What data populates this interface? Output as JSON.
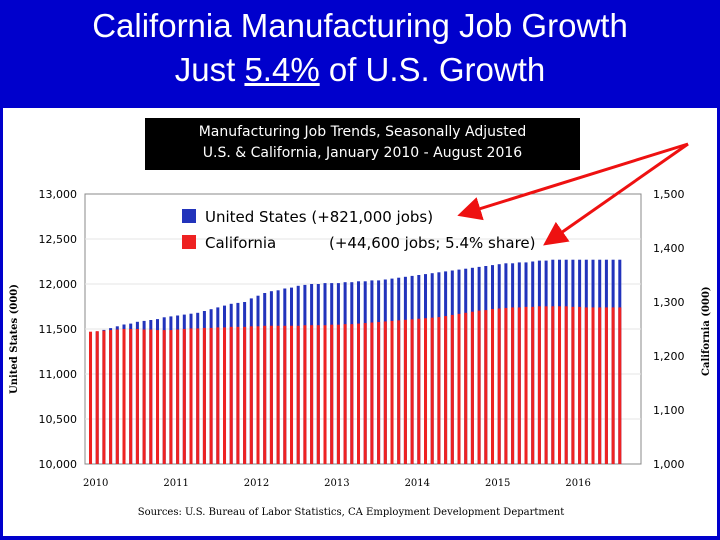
{
  "slide": {
    "title_line1": "California Manufacturing Job Growth",
    "title_line2_prefix": "Just ",
    "title_line2_pct": "5.4%",
    "title_line2_suffix": " of U.S. Growth"
  },
  "chart_data": {
    "type": "bar",
    "title_line1": "Manufacturing Job Trends, Seasonally Adjusted",
    "title_line2": "U.S. & California, January 2010 - August 2016",
    "ylabel_left": "United States (000)",
    "ylabel_right": "California (000)",
    "ylim_left": [
      10000,
      13000
    ],
    "ylim_right": [
      1000,
      1500
    ],
    "left_ticks": [
      "13,000",
      "12,500",
      "12,000",
      "11,500",
      "11,000",
      "10,500",
      "10,000"
    ],
    "right_ticks": [
      "1,500",
      "1,400",
      "1,300",
      "1,200",
      "1,100",
      "1,000"
    ],
    "x_ticks": [
      "2010",
      "2011",
      "2012",
      "2013",
      "2014",
      "2015",
      "2016"
    ],
    "legend": [
      {
        "label": "United States (+821,000 jobs)",
        "color": "#2233bb"
      },
      {
        "label": "California",
        "extra": "(+44,600 jobs; 5.4% share)",
        "color": "#ee2222"
      }
    ],
    "source": "Sources: U.S. Bureau of Labor Statistics, CA Employment Development Department",
    "series": [
      {
        "name": "United States",
        "axis": "left",
        "color": "#2233bb",
        "start": "2010-01",
        "end": "2016-08",
        "values": [
          11460,
          11470,
          11490,
          11510,
          11530,
          11550,
          11560,
          11580,
          11590,
          11600,
          11610,
          11630,
          11640,
          11650,
          11660,
          11670,
          11680,
          11700,
          11720,
          11740,
          11760,
          11780,
          11790,
          11800,
          11840,
          11870,
          11900,
          11920,
          11930,
          11950,
          11960,
          11980,
          11990,
          12000,
          12000,
          12010,
          12010,
          12010,
          12020,
          12020,
          12030,
          12030,
          12040,
          12040,
          12050,
          12060,
          12070,
          12080,
          12090,
          12100,
          12110,
          12120,
          12130,
          12140,
          12150,
          12160,
          12170,
          12180,
          12190,
          12200,
          12210,
          12220,
          12230,
          12230,
          12240,
          12240,
          12250,
          12260,
          12260,
          12270,
          12270,
          12270,
          12270,
          12270,
          12270,
          12270,
          12270,
          12270,
          12270,
          12270
        ]
      },
      {
        "name": "California",
        "axis": "right",
        "color": "#ee2222",
        "start": "2010-01",
        "end": "2016-08",
        "values": [
          1245,
          1246,
          1247,
          1248,
          1249,
          1250,
          1250,
          1250,
          1249,
          1249,
          1248,
          1248,
          1248,
          1249,
          1250,
          1251,
          1251,
          1252,
          1252,
          1253,
          1253,
          1254,
          1254,
          1254,
          1255,
          1255,
          1256,
          1256,
          1256,
          1256,
          1256,
          1256,
          1257,
          1257,
          1257,
          1257,
          1258,
          1258,
          1259,
          1259,
          1260,
          1261,
          1262,
          1263,
          1264,
          1265,
          1266,
          1267,
          1268,
          1269,
          1270,
          1271,
          1272,
          1274,
          1276,
          1278,
          1280,
          1282,
          1284,
          1285,
          1287,
          1288,
          1289,
          1290,
          1290,
          1291,
          1291,
          1292,
          1292,
          1292,
          1292,
          1292,
          1291,
          1291,
          1290,
          1290,
          1290,
          1290,
          1290,
          1290
        ]
      }
    ]
  }
}
